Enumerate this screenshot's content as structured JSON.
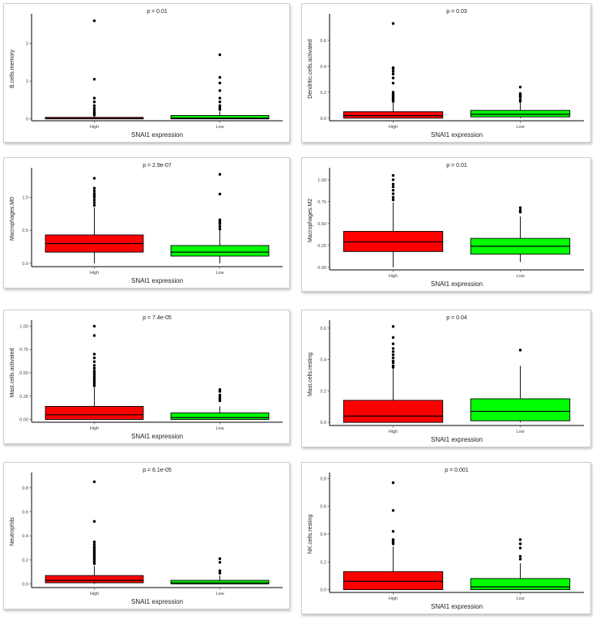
{
  "chart_data": [
    {
      "type": "boxplot",
      "title": "p = 0.01",
      "ylabel": "B.cells.memory",
      "xlabel": "SNAI1 expression",
      "categories": [
        "High",
        "Low"
      ],
      "ylim": [
        -0.05,
        2.7
      ],
      "yticks": [
        0,
        1,
        2
      ],
      "ytick_labels": [
        "0",
        "1",
        "2"
      ],
      "series": [
        {
          "name": "High",
          "color": "#ff0000",
          "q1": 0,
          "median": 0.01,
          "q3": 0.04,
          "whisker_low": 0,
          "whisker_high": 0.08,
          "outliers": [
            0.1,
            0.12,
            0.15,
            0.18,
            0.22,
            0.28,
            0.35,
            0.45,
            0.55,
            1.05,
            2.6
          ]
        },
        {
          "name": "Low",
          "color": "#00ff00",
          "q1": 0,
          "median": 0.02,
          "q3": 0.09,
          "whisker_low": 0,
          "whisker_high": 0.2,
          "outliers": [
            0.25,
            0.3,
            0.35,
            0.45,
            0.55,
            0.75,
            0.95,
            1.1,
            1.7
          ]
        }
      ]
    },
    {
      "type": "boxplot",
      "title": "p = 0.03",
      "ylabel": "Dendritic.cells.activated",
      "xlabel": "SNAI1 expression",
      "categories": [
        "High",
        "Low"
      ],
      "ylim": [
        -0.02,
        0.78
      ],
      "yticks": [
        0,
        0.2,
        0.4,
        0.6
      ],
      "ytick_labels": [
        "0.0",
        "0.2",
        "0.4",
        "0.6"
      ],
      "series": [
        {
          "name": "High",
          "color": "#ff0000",
          "q1": 0,
          "median": 0.02,
          "q3": 0.05,
          "whisker_low": 0,
          "whisker_high": 0.12,
          "outliers": [
            0.13,
            0.14,
            0.15,
            0.16,
            0.17,
            0.18,
            0.19,
            0.2,
            0.27,
            0.31,
            0.34,
            0.36,
            0.38,
            0.39,
            0.73
          ]
        },
        {
          "name": "Low",
          "color": "#00ff00",
          "q1": 0.01,
          "median": 0.03,
          "q3": 0.06,
          "whisker_low": 0,
          "whisker_high": 0.12,
          "outliers": [
            0.13,
            0.14,
            0.16,
            0.17,
            0.18,
            0.19,
            0.24
          ]
        }
      ]
    },
    {
      "type": "boxplot",
      "title": "p = 2.9e-07",
      "ylabel": "Macrophages.M0",
      "xlabel": "SNAI1 expression",
      "categories": [
        "High",
        "Low"
      ],
      "ylim": [
        -0.05,
        1.4
      ],
      "yticks": [
        0,
        0.5,
        1
      ],
      "ytick_labels": [
        "0.0",
        "0.5",
        "1.0"
      ],
      "series": [
        {
          "name": "High",
          "color": "#ff0000",
          "q1": 0.17,
          "median": 0.3,
          "q3": 0.43,
          "whisker_low": 0,
          "whisker_high": 0.85,
          "outliers": [
            0.88,
            0.92,
            0.96,
            1.0,
            1.03,
            1.06,
            1.1,
            1.14,
            1.29
          ]
        },
        {
          "name": "Low",
          "color": "#00ff00",
          "q1": 0.11,
          "median": 0.17,
          "q3": 0.27,
          "whisker_low": 0,
          "whisker_high": 0.5,
          "outliers": [
            0.52,
            0.56,
            0.6,
            0.63,
            0.66,
            1.05,
            1.35
          ]
        }
      ]
    },
    {
      "type": "boxplot",
      "title": "p = 0.01",
      "ylabel": "Macrophages.M2",
      "xlabel": "SNAI1 expression",
      "categories": [
        "High",
        "Low"
      ],
      "ylim": [
        -0.03,
        1.1
      ],
      "yticks": [
        0,
        0.25,
        0.5,
        0.75,
        1
      ],
      "ytick_labels": [
        "0.00",
        "0.25",
        "0.50",
        "0.75",
        "1.00"
      ],
      "series": [
        {
          "name": "High",
          "color": "#ff0000",
          "q1": 0.18,
          "median": 0.29,
          "q3": 0.41,
          "whisker_low": 0,
          "whisker_high": 0.74,
          "outliers": [
            0.77,
            0.8,
            0.84,
            0.88,
            0.92,
            0.95,
            1.0,
            1.05
          ]
        },
        {
          "name": "Low",
          "color": "#00ff00",
          "q1": 0.15,
          "median": 0.24,
          "q3": 0.33,
          "whisker_low": 0.06,
          "whisker_high": 0.58,
          "outliers": [
            0.63,
            0.65,
            0.68
          ]
        }
      ]
    },
    {
      "type": "boxplot",
      "title": "p = 7.4e-05",
      "ylabel": "Mast.cells.activated",
      "xlabel": "SNAI1 expression",
      "categories": [
        "High",
        "Low"
      ],
      "ylim": [
        -0.03,
        1.03
      ],
      "yticks": [
        0,
        0.25,
        0.5,
        0.75,
        1
      ],
      "ytick_labels": [
        "0.00",
        "0.25",
        "0.50",
        "0.75",
        "1.00"
      ],
      "series": [
        {
          "name": "High",
          "color": "#ff0000",
          "q1": 0,
          "median": 0.05,
          "q3": 0.14,
          "whisker_low": 0,
          "whisker_high": 0.34,
          "outliers": [
            0.36,
            0.38,
            0.4,
            0.42,
            0.44,
            0.46,
            0.48,
            0.5,
            0.52,
            0.55,
            0.58,
            0.62,
            0.66,
            0.7,
            0.9,
            1.0
          ]
        },
        {
          "name": "Low",
          "color": "#00ff00",
          "q1": 0,
          "median": 0.02,
          "q3": 0.07,
          "whisker_low": 0,
          "whisker_high": 0.14,
          "outliers": [
            0.2,
            0.22,
            0.24,
            0.26,
            0.3,
            0.32
          ]
        }
      ]
    },
    {
      "type": "boxplot",
      "title": "p = 0.04",
      "ylabel": "Mast.cells.resting",
      "xlabel": "SNAI1 expression",
      "categories": [
        "High",
        "Low"
      ],
      "ylim": [
        -0.02,
        0.63
      ],
      "yticks": [
        0,
        0.2,
        0.4,
        0.6
      ],
      "ytick_labels": [
        "0.0",
        "0.2",
        "0.4",
        "0.6"
      ],
      "series": [
        {
          "name": "High",
          "color": "#ff0000",
          "q1": 0,
          "median": 0.04,
          "q3": 0.14,
          "whisker_low": 0,
          "whisker_high": 0.34,
          "outliers": [
            0.35,
            0.36,
            0.38,
            0.39,
            0.41,
            0.43,
            0.45,
            0.47,
            0.5,
            0.54,
            0.61
          ]
        },
        {
          "name": "Low",
          "color": "#00ff00",
          "q1": 0.01,
          "median": 0.07,
          "q3": 0.15,
          "whisker_low": 0,
          "whisker_high": 0.36,
          "outliers": [
            0.46
          ]
        }
      ]
    },
    {
      "type": "boxplot",
      "title": "p = 6.1e-05",
      "ylabel": "Neutrophils",
      "xlabel": "SNAI1 expression",
      "categories": [
        "High",
        "Low"
      ],
      "ylim": [
        -0.03,
        0.9
      ],
      "yticks": [
        0,
        0.2,
        0.4,
        0.6,
        0.8
      ],
      "ytick_labels": [
        "0.0",
        "0.2",
        "0.4",
        "0.6",
        "0.8"
      ],
      "series": [
        {
          "name": "High",
          "color": "#ff0000",
          "q1": 0.01,
          "median": 0.03,
          "q3": 0.07,
          "whisker_low": 0,
          "whisker_high": 0.15,
          "outliers": [
            0.17,
            0.18,
            0.19,
            0.2,
            0.21,
            0.22,
            0.23,
            0.24,
            0.25,
            0.26,
            0.27,
            0.28,
            0.29,
            0.3,
            0.31,
            0.33,
            0.35,
            0.52,
            0.85
          ]
        },
        {
          "name": "Low",
          "color": "#00ff00",
          "q1": 0,
          "median": 0.01,
          "q3": 0.03,
          "whisker_low": 0,
          "whisker_high": 0.07,
          "outliers": [
            0.09,
            0.11,
            0.18,
            0.21
          ]
        }
      ]
    },
    {
      "type": "boxplot",
      "title": "p = 0.001",
      "ylabel": "NK.cells.resting",
      "xlabel": "SNAI1 expression",
      "categories": [
        "High",
        "Low"
      ],
      "ylim": [
        -0.02,
        0.82
      ],
      "yticks": [
        0,
        0.2,
        0.4,
        0.6,
        0.8
      ],
      "ytick_labels": [
        "0.0",
        "0.2",
        "0.4",
        "0.6",
        "0.8"
      ],
      "series": [
        {
          "name": "High",
          "color": "#ff0000",
          "q1": 0,
          "median": 0.06,
          "q3": 0.13,
          "whisker_low": 0,
          "whisker_high": 0.31,
          "outliers": [
            0.33,
            0.34,
            0.35,
            0.36,
            0.42,
            0.57,
            0.77
          ]
        },
        {
          "name": "Low",
          "color": "#00ff00",
          "q1": 0,
          "median": 0.02,
          "q3": 0.08,
          "whisker_low": 0,
          "whisker_high": 0.19,
          "outliers": [
            0.22,
            0.24,
            0.3,
            0.33,
            0.36
          ]
        }
      ]
    }
  ]
}
